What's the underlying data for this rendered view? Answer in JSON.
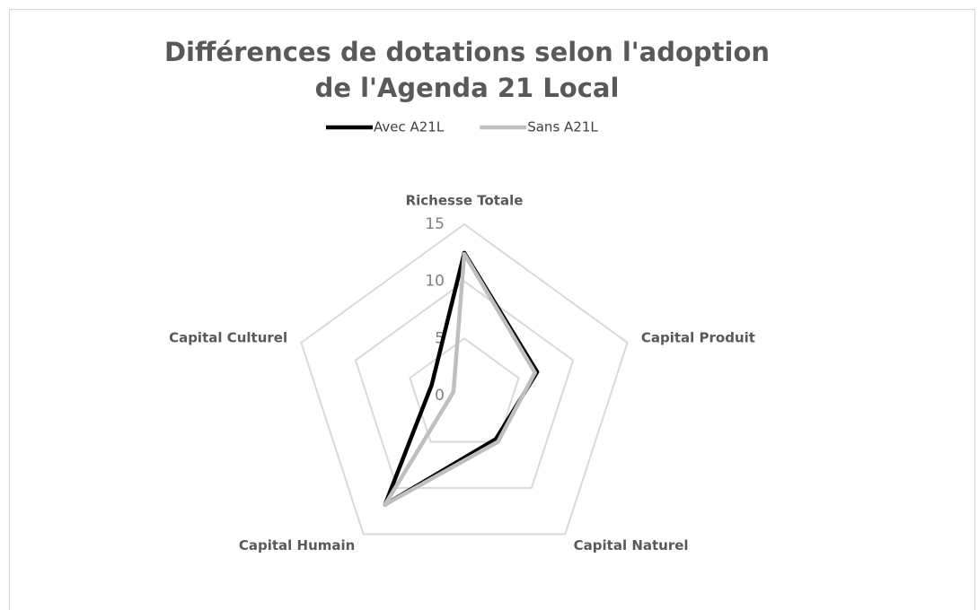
{
  "chart_data": {
    "type": "radar",
    "title": "Différences de dotations selon l'adoption de l'Agenda 21 Local",
    "categories": [
      "Richesse Totale",
      "Capital Produit",
      "Capital Naturel",
      "Capital Humain",
      "Capital Culturel"
    ],
    "series": [
      {
        "name": "Avec A21L",
        "color": "#000000",
        "values": [
          12.5,
          6.7,
          4.7,
          11.8,
          3
        ]
      },
      {
        "name": "Sans A21L",
        "color": "#bfbfbf",
        "values": [
          12.4,
          6.5,
          5,
          11.8,
          1
        ]
      }
    ],
    "ylim": [
      0,
      15
    ],
    "yticks": [
      0,
      5,
      10,
      15
    ],
    "grid": true,
    "legend": "top"
  }
}
